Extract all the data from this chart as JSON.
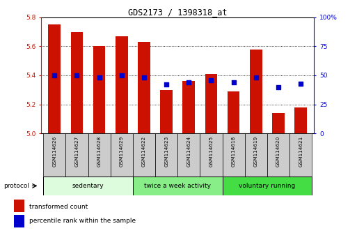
{
  "title": "GDS2173 / 1398318_at",
  "categories": [
    "GSM114626",
    "GSM114627",
    "GSM114628",
    "GSM114629",
    "GSM114622",
    "GSM114623",
    "GSM114624",
    "GSM114625",
    "GSM114618",
    "GSM114619",
    "GSM114620",
    "GSM114621"
  ],
  "bar_values": [
    5.75,
    5.7,
    5.6,
    5.67,
    5.63,
    5.3,
    5.36,
    5.41,
    5.29,
    5.58,
    5.14,
    5.18
  ],
  "bar_bottom": 5.0,
  "percentile_values": [
    50,
    50,
    48,
    50,
    48,
    42,
    44,
    46,
    44,
    48,
    40,
    43
  ],
  "bar_color": "#CC1100",
  "dot_color": "#0000CC",
  "ylim_left": [
    5.0,
    5.8
  ],
  "ylim_right": [
    0,
    100
  ],
  "yticks_left": [
    5.0,
    5.2,
    5.4,
    5.6,
    5.8
  ],
  "yticks_right": [
    0,
    25,
    50,
    75,
    100
  ],
  "grid_values": [
    5.2,
    5.4,
    5.6
  ],
  "groups": [
    {
      "label": "sedentary",
      "start": 0,
      "end": 4,
      "color": "#ddfcdd"
    },
    {
      "label": "twice a week activity",
      "start": 4,
      "end": 8,
      "color": "#88ee88"
    },
    {
      "label": "voluntary running",
      "start": 8,
      "end": 12,
      "color": "#44dd44"
    }
  ],
  "protocol_label": "protocol",
  "legend_bar_label": "transformed count",
  "legend_dot_label": "percentile rank within the sample",
  "label_box_color": "#cccccc",
  "background_color": "#ffffff"
}
